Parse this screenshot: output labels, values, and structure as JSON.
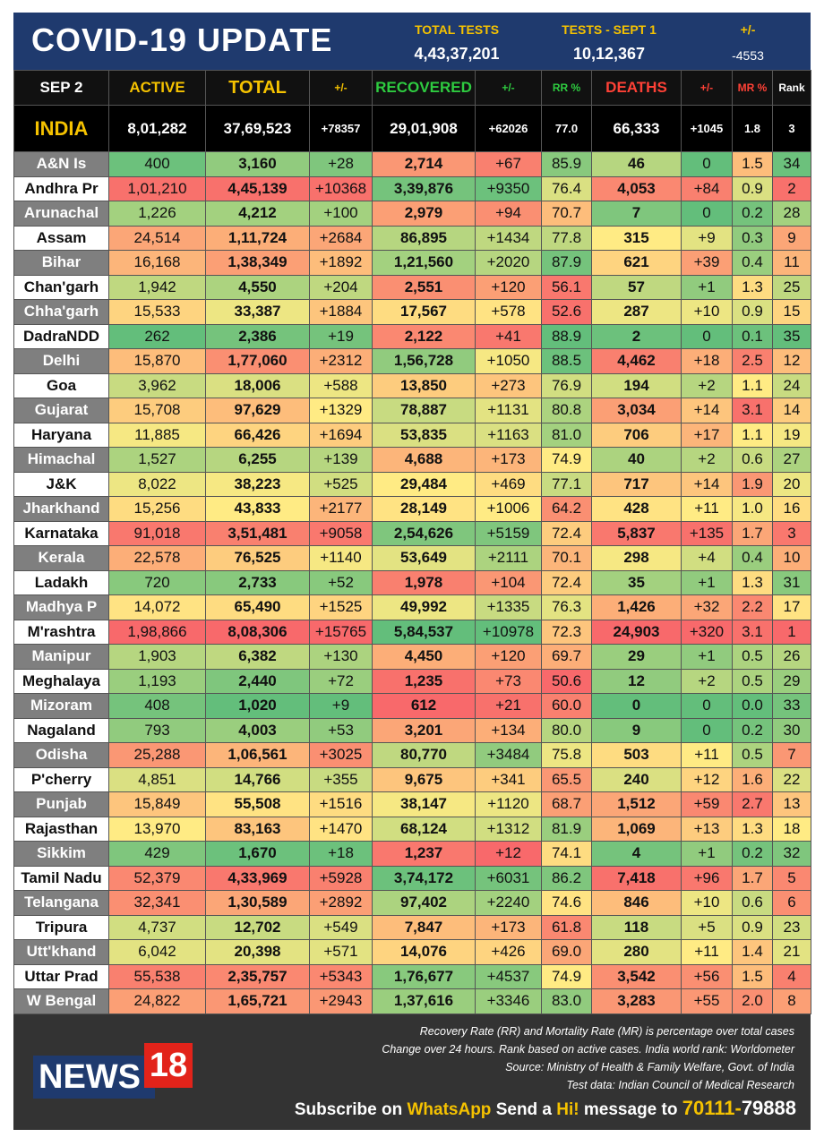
{
  "header": {
    "title": "COVID-19 UPDATE",
    "total_tests_label": "TOTAL TESTS",
    "total_tests": "4,43,37,201",
    "tests_label": "TESTS - SEPT 1",
    "tests": "10,12,367",
    "change_label": "+/-",
    "change": "-4553"
  },
  "table": {
    "columns": [
      "SEP 2",
      "ACTIVE",
      "TOTAL",
      "+/-",
      "RECOVERED",
      "+/-",
      "RR %",
      "DEATHS",
      "+/-",
      "MR %",
      "Rank"
    ],
    "india": [
      "INDIA",
      "8,01,282",
      "37,69,523",
      "+78357",
      "29,01,908",
      "+62026",
      "77.0",
      "66,333",
      "+1045",
      "1.8",
      "3"
    ],
    "rows": [
      [
        "A&N Is",
        "400",
        "3,160",
        "+28",
        "2,714",
        "+67",
        "85.9",
        "46",
        "0",
        "1.5",
        "34"
      ],
      [
        "Andhra Pr",
        "1,01,210",
        "4,45,139",
        "+10368",
        "3,39,876",
        "+9350",
        "76.4",
        "4,053",
        "+84",
        "0.9",
        "2"
      ],
      [
        "Arunachal",
        "1,226",
        "4,212",
        "+100",
        "2,979",
        "+94",
        "70.7",
        "7",
        "0",
        "0.2",
        "28"
      ],
      [
        "Assam",
        "24,514",
        "1,11,724",
        "+2684",
        "86,895",
        "+1434",
        "77.8",
        "315",
        "+9",
        "0.3",
        "9"
      ],
      [
        "Bihar",
        "16,168",
        "1,38,349",
        "+1892",
        "1,21,560",
        "+2020",
        "87.9",
        "621",
        "+39",
        "0.4",
        "11"
      ],
      [
        "Chan'garh",
        "1,942",
        "4,550",
        "+204",
        "2,551",
        "+120",
        "56.1",
        "57",
        "+1",
        "1.3",
        "25"
      ],
      [
        "Chha'garh",
        "15,533",
        "33,387",
        "+1884",
        "17,567",
        "+578",
        "52.6",
        "287",
        "+10",
        "0.9",
        "15"
      ],
      [
        "DadraNDD",
        "262",
        "2,386",
        "+19",
        "2,122",
        "+41",
        "88.9",
        "2",
        "0",
        "0.1",
        "35"
      ],
      [
        "Delhi",
        "15,870",
        "1,77,060",
        "+2312",
        "1,56,728",
        "+1050",
        "88.5",
        "4,462",
        "+18",
        "2.5",
        "12"
      ],
      [
        "Goa",
        "3,962",
        "18,006",
        "+588",
        "13,850",
        "+273",
        "76.9",
        "194",
        "+2",
        "1.1",
        "24"
      ],
      [
        "Gujarat",
        "15,708",
        "97,629",
        "+1329",
        "78,887",
        "+1131",
        "80.8",
        "3,034",
        "+14",
        "3.1",
        "14"
      ],
      [
        "Haryana",
        "11,885",
        "66,426",
        "+1694",
        "53,835",
        "+1163",
        "81.0",
        "706",
        "+17",
        "1.1",
        "19"
      ],
      [
        "Himachal",
        "1,527",
        "6,255",
        "+139",
        "4,688",
        "+173",
        "74.9",
        "40",
        "+2",
        "0.6",
        "27"
      ],
      [
        "J&K",
        "8,022",
        "38,223",
        "+525",
        "29,484",
        "+469",
        "77.1",
        "717",
        "+14",
        "1.9",
        "20"
      ],
      [
        "Jharkhand",
        "15,256",
        "43,833",
        "+2177",
        "28,149",
        "+1006",
        "64.2",
        "428",
        "+11",
        "1.0",
        "16"
      ],
      [
        "Karnataka",
        "91,018",
        "3,51,481",
        "+9058",
        "2,54,626",
        "+5159",
        "72.4",
        "5,837",
        "+135",
        "1.7",
        "3"
      ],
      [
        "Kerala",
        "22,578",
        "76,525",
        "+1140",
        "53,649",
        "+2111",
        "70.1",
        "298",
        "+4",
        "0.4",
        "10"
      ],
      [
        "Ladakh",
        "720",
        "2,733",
        "+52",
        "1,978",
        "+104",
        "72.4",
        "35",
        "+1",
        "1.3",
        "31"
      ],
      [
        "Madhya P",
        "14,072",
        "65,490",
        "+1525",
        "49,992",
        "+1335",
        "76.3",
        "1,426",
        "+32",
        "2.2",
        "17"
      ],
      [
        "M'rashtra",
        "1,98,866",
        "8,08,306",
        "+15765",
        "5,84,537",
        "+10978",
        "72.3",
        "24,903",
        "+320",
        "3.1",
        "1"
      ],
      [
        "Manipur",
        "1,903",
        "6,382",
        "+130",
        "4,450",
        "+120",
        "69.7",
        "29",
        "+1",
        "0.5",
        "26"
      ],
      [
        "Meghalaya",
        "1,193",
        "2,440",
        "+72",
        "1,235",
        "+73",
        "50.6",
        "12",
        "+2",
        "0.5",
        "29"
      ],
      [
        "Mizoram",
        "408",
        "1,020",
        "+9",
        "612",
        "+21",
        "60.0",
        "0",
        "0",
        "0.0",
        "33"
      ],
      [
        "Nagaland",
        "793",
        "4,003",
        "+53",
        "3,201",
        "+134",
        "80.0",
        "9",
        "0",
        "0.2",
        "30"
      ],
      [
        "Odisha",
        "25,288",
        "1,06,561",
        "+3025",
        "80,770",
        "+3484",
        "75.8",
        "503",
        "+11",
        "0.5",
        "7"
      ],
      [
        "P'cherry",
        "4,851",
        "14,766",
        "+355",
        "9,675",
        "+341",
        "65.5",
        "240",
        "+12",
        "1.6",
        "22"
      ],
      [
        "Punjab",
        "15,849",
        "55,508",
        "+1516",
        "38,147",
        "+1120",
        "68.7",
        "1,512",
        "+59",
        "2.7",
        "13"
      ],
      [
        "Rajasthan",
        "13,970",
        "83,163",
        "+1470",
        "68,124",
        "+1312",
        "81.9",
        "1,069",
        "+13",
        "1.3",
        "18"
      ],
      [
        "Sikkim",
        "429",
        "1,670",
        "+18",
        "1,237",
        "+12",
        "74.1",
        "4",
        "+1",
        "0.2",
        "32"
      ],
      [
        "Tamil Nadu",
        "52,379",
        "4,33,969",
        "+5928",
        "3,74,172",
        "+6031",
        "86.2",
        "7,418",
        "+96",
        "1.7",
        "5"
      ],
      [
        "Telangana",
        "32,341",
        "1,30,589",
        "+2892",
        "97,402",
        "+2240",
        "74.6",
        "846",
        "+10",
        "0.6",
        "6"
      ],
      [
        "Tripura",
        "4,737",
        "12,702",
        "+549",
        "7,847",
        "+173",
        "61.8",
        "118",
        "+5",
        "0.9",
        "23"
      ],
      [
        "Utt'khand",
        "6,042",
        "20,398",
        "+571",
        "14,076",
        "+426",
        "69.0",
        "280",
        "+11",
        "1.4",
        "21"
      ],
      [
        "Uttar Prad",
        "55,538",
        "2,35,757",
        "+5343",
        "1,76,677",
        "+4537",
        "74.9",
        "3,542",
        "+56",
        "1.5",
        "4"
      ],
      [
        "W Bengal",
        "24,822",
        "1,65,721",
        "+2943",
        "1,37,616",
        "+3346",
        "83.0",
        "3,283",
        "+55",
        "2.0",
        "8"
      ]
    ]
  },
  "footer": {
    "notes": [
      "Recovery Rate (RR) and Mortality Rate (MR) is percentage over total cases",
      "Change over 24 hours. Rank based on active cases. India world rank: Worldometer",
      "Source: Ministry of Health & Family Welfare, Govt. of India",
      "Test data: Indian Council of Medical Research"
    ],
    "logo": [
      "NEWS",
      "18"
    ],
    "subscribe": [
      "Subscribe on",
      "WhatsApp",
      "Send a",
      "Hi!",
      "message to",
      "70111-",
      "79888"
    ]
  }
}
